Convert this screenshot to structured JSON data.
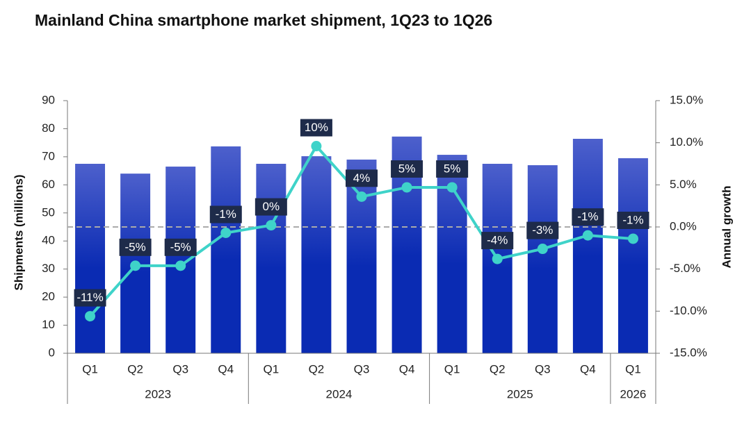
{
  "chart_data": {
    "type": "bar",
    "title": "Mainland China smartphone market shipment, 1Q23 to 1Q26",
    "y_label": "Shipments (millions)",
    "y2_label": "Annual growth",
    "categories": [
      "Q1",
      "Q2",
      "Q3",
      "Q4",
      "Q1",
      "Q2",
      "Q3",
      "Q4",
      "Q1",
      "Q2",
      "Q3",
      "Q4",
      "Q1"
    ],
    "x_groups": [
      {
        "label": "2023",
        "span": 4
      },
      {
        "label": "2024",
        "span": 4
      },
      {
        "label": "2025",
        "span": 4
      },
      {
        "label": "2026",
        "span": 1
      }
    ],
    "series": [
      {
        "type": "bar",
        "color": "#0a2bb3",
        "color_top": "#4d60cc",
        "values": [
          67.5,
          64,
          66.5,
          73.7,
          67.5,
          70.2,
          69,
          77.2,
          70.7,
          67.5,
          67,
          76.4,
          69.5
        ]
      },
      {
        "type": "line",
        "axis": "y2",
        "color": "#3fd3c9",
        "values": [
          -10.6,
          -4.6,
          -4.6,
          -0.7,
          0.2,
          9.6,
          3.6,
          4.7,
          4.7,
          -3.8,
          -2.6,
          -1.0,
          -1.4
        ],
        "value_labels": [
          "-11%",
          "-5%",
          "-5%",
          "-1%",
          "0%",
          "10%",
          "4%",
          "5%",
          "5%",
          "-4%",
          "-3%",
          "-1%",
          "-1%"
        ],
        "label_color": "#1e2b4a"
      }
    ],
    "ylim": [
      0,
      90
    ],
    "yticks": [
      0,
      10,
      20,
      30,
      40,
      50,
      60,
      70,
      80,
      90
    ],
    "y2lim": [
      -15,
      15
    ],
    "y2ticks": [
      {
        "value": -15,
        "label": "-15.0%"
      },
      {
        "value": -10,
        "label": "-10.0%"
      },
      {
        "value": -5,
        "label": "-5.0%"
      },
      {
        "value": 0,
        "label": "0.0%"
      },
      {
        "value": 5,
        "label": "5.0%"
      },
      {
        "value": 10,
        "label": "10.0%"
      },
      {
        "value": 15,
        "label": "15.0%"
      }
    ],
    "y2_reference": 0,
    "grid": false
  }
}
